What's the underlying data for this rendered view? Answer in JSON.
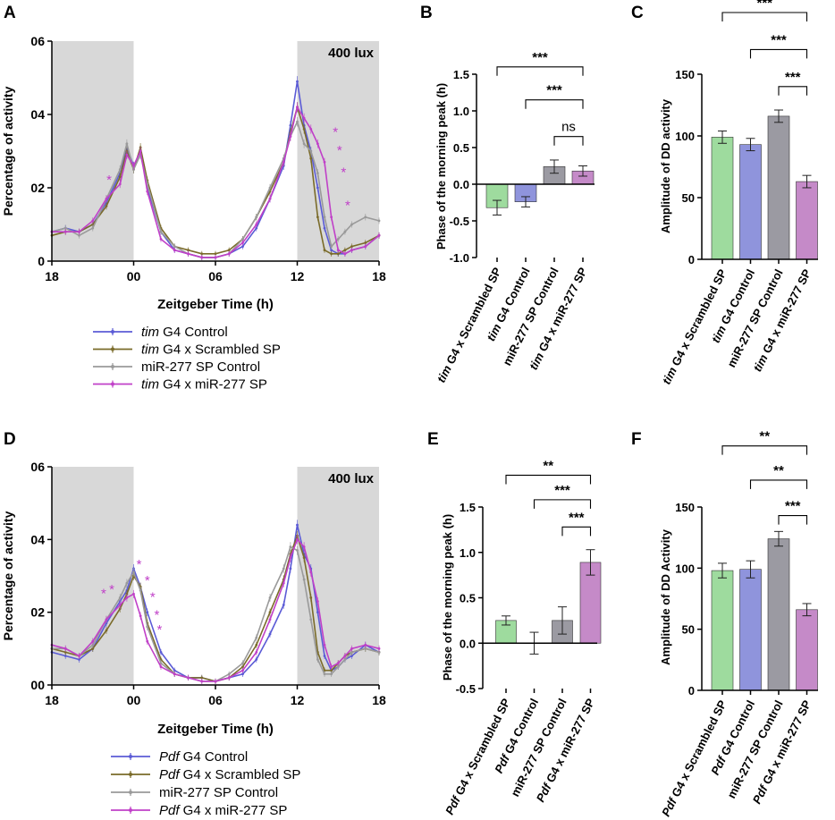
{
  "figure": {
    "legend_top": [
      {
        "italic": "tim",
        "rest": " G4 Control",
        "color": "#5b5bd6"
      },
      {
        "italic": "tim",
        "rest": " G4 x Scrambled SP",
        "color": "#7a6b2a"
      },
      {
        "italic": "",
        "rest": "miR-277 SP Control",
        "color": "#9a9a9a"
      },
      {
        "italic": "tim",
        "rest": " G4 x miR-277 SP",
        "color": "#c040c8"
      }
    ],
    "legend_bottom": [
      {
        "italic": "Pdf",
        "rest": " G4 Control",
        "color": "#5b5bd6"
      },
      {
        "italic": "Pdf",
        "rest": " G4 x Scrambled SP",
        "color": "#7a6b2a"
      },
      {
        "italic": "",
        "rest": "miR-277 SP Control",
        "color": "#9a9a9a"
      },
      {
        "italic": "Pdf",
        "rest": " G4 x miR-277 SP",
        "color": "#c040c8"
      }
    ]
  },
  "chart_data": [
    {
      "panel": "A",
      "type": "line",
      "title": "400 lux",
      "xlabel": "Zeitgeber Time (h)",
      "ylabel": "Percentage of activity",
      "x_ticks": [
        "18",
        "00",
        "06",
        "12",
        "18"
      ],
      "x_tick_positions": [
        18,
        24,
        30,
        36,
        42
      ],
      "ylim": [
        0,
        0.06
      ],
      "y_ticks": [
        "0",
        "02",
        "04",
        "06"
      ],
      "dark_shading": [
        [
          18,
          24
        ],
        [
          36,
          42
        ]
      ],
      "x": [
        18,
        19,
        20,
        21,
        22,
        23,
        23.5,
        24,
        24.5,
        25,
        26,
        27,
        28,
        29,
        30,
        31,
        32,
        33,
        34,
        35,
        35.5,
        36,
        36.5,
        37,
        37.5,
        38,
        38.5,
        39,
        39.5,
        40,
        41,
        42
      ],
      "series": [
        {
          "name": "tim G4 Control",
          "color": "#5b5bd6",
          "values": [
            0.008,
            0.009,
            0.008,
            0.01,
            0.016,
            0.024,
            0.031,
            0.026,
            0.03,
            0.02,
            0.008,
            0.003,
            0.002,
            0.001,
            0.001,
            0.002,
            0.004,
            0.009,
            0.017,
            0.026,
            0.037,
            0.049,
            0.037,
            0.03,
            0.02,
            0.009,
            0.003,
            0.002,
            0.002,
            0.003,
            0.004,
            0.007
          ]
        },
        {
          "name": "tim G4 x Scrambled SP",
          "color": "#7a6b2a",
          "values": [
            0.007,
            0.008,
            0.008,
            0.01,
            0.015,
            0.023,
            0.03,
            0.025,
            0.031,
            0.022,
            0.009,
            0.004,
            0.003,
            0.002,
            0.002,
            0.003,
            0.006,
            0.012,
            0.019,
            0.027,
            0.035,
            0.042,
            0.036,
            0.028,
            0.012,
            0.003,
            0.002,
            0.002,
            0.003,
            0.004,
            0.005,
            0.007
          ]
        },
        {
          "name": "miR-277 SP Control",
          "color": "#9a9a9a",
          "values": [
            0.008,
            0.009,
            0.007,
            0.009,
            0.017,
            0.025,
            0.032,
            0.025,
            0.029,
            0.021,
            0.008,
            0.004,
            0.002,
            0.001,
            0.001,
            0.002,
            0.006,
            0.012,
            0.02,
            0.028,
            0.034,
            0.038,
            0.032,
            0.03,
            0.024,
            0.012,
            0.004,
            0.006,
            0.008,
            0.01,
            0.012,
            0.011
          ]
        },
        {
          "name": "tim G4 x miR-277 SP",
          "color": "#c040c8",
          "values": [
            0.008,
            0.008,
            0.008,
            0.011,
            0.017,
            0.021,
            0.029,
            0.026,
            0.03,
            0.019,
            0.006,
            0.003,
            0.002,
            0.001,
            0.001,
            0.002,
            0.005,
            0.01,
            0.017,
            0.027,
            0.034,
            0.042,
            0.039,
            0.036,
            0.032,
            0.027,
            0.012,
            0.003,
            0.002,
            0.003,
            0.004,
            0.007
          ]
        }
      ],
      "annotations": [
        {
          "text": "*",
          "x": 22.2,
          "y": 0.0225
        },
        {
          "text": "*",
          "x": 38.8,
          "y": 0.0355
        },
        {
          "text": "*",
          "x": 39.1,
          "y": 0.0305
        },
        {
          "text": "*",
          "x": 39.4,
          "y": 0.0245
        },
        {
          "text": "*",
          "x": 39.7,
          "y": 0.0155
        }
      ]
    },
    {
      "panel": "B",
      "type": "bar",
      "ylabel": "Phase of the morning peak (h)",
      "categories": [
        {
          "i": "tim",
          "r": " G4 x Scrambled SP"
        },
        {
          "i": "tim",
          "r": " G4 Control"
        },
        {
          "i": "",
          "r": "miR-277 SP Control"
        },
        {
          "i": "tim",
          "r": " G4 x miR-277 SP"
        }
      ],
      "values": [
        -0.32,
        -0.24,
        0.24,
        0.18
      ],
      "errors": [
        0.1,
        0.07,
        0.09,
        0.07
      ],
      "colors": [
        "#9edb9e",
        "#8f94dc",
        "#9b9aa2",
        "#c58ac8"
      ],
      "ylim": [
        -1.0,
        1.5
      ],
      "y_ticks": [
        "-1.0",
        "-0.5",
        "0.0",
        "0.5",
        "1.0",
        "1.5"
      ],
      "significance": [
        {
          "from": 0,
          "to": 3,
          "label": "***",
          "y": 1.6
        },
        {
          "from": 1,
          "to": 3,
          "label": "***",
          "y": 1.15
        },
        {
          "from": 2,
          "to": 3,
          "label": "ns",
          "y": 0.65
        }
      ]
    },
    {
      "panel": "C",
      "type": "bar",
      "ylabel": "Amplitude of DD activity",
      "categories": [
        {
          "i": "tim",
          "r": " G4 x Scrambled SP"
        },
        {
          "i": "tim",
          "r": " G4 Control"
        },
        {
          "i": "",
          "r": "miR-277 SP Control"
        },
        {
          "i": "tim",
          "r": " G4 x miR-277 SP"
        }
      ],
      "values": [
        99,
        93,
        116,
        63
      ],
      "errors": [
        5,
        5,
        5,
        5
      ],
      "colors": [
        "#9edb9e",
        "#8f94dc",
        "#9b9aa2",
        "#c58ac8"
      ],
      "ylim": [
        0,
        150
      ],
      "y_ticks": [
        "0",
        "50",
        "100",
        "150"
      ],
      "significance": [
        {
          "from": 0,
          "to": 3,
          "label": "***",
          "y": 200
        },
        {
          "from": 1,
          "to": 3,
          "label": "***",
          "y": 170
        },
        {
          "from": 2,
          "to": 3,
          "label": "***",
          "y": 140
        }
      ]
    },
    {
      "panel": "D",
      "type": "line",
      "title": "400 lux",
      "xlabel": "Zeitgeber Time (h)",
      "ylabel": "Percentage of activity",
      "x_ticks": [
        "18",
        "00",
        "06",
        "12",
        "18"
      ],
      "x_tick_positions": [
        18,
        24,
        30,
        36,
        42
      ],
      "ylim": [
        0,
        0.06
      ],
      "y_ticks": [
        "00",
        "02",
        "04",
        "06"
      ],
      "dark_shading": [
        [
          18,
          24
        ],
        [
          36,
          42
        ]
      ],
      "x": [
        18,
        19,
        20,
        21,
        22,
        23,
        23.5,
        24,
        24.5,
        25,
        26,
        27,
        28,
        29,
        30,
        31,
        32,
        33,
        34,
        35,
        35.5,
        36,
        36.5,
        37,
        37.5,
        38,
        38.5,
        39,
        39.5,
        40,
        41,
        42
      ],
      "series": [
        {
          "name": "Pdf G4 Control",
          "color": "#5b5bd6",
          "values": [
            0.009,
            0.008,
            0.007,
            0.01,
            0.017,
            0.023,
            0.026,
            0.032,
            0.027,
            0.02,
            0.009,
            0.004,
            0.002,
            0.002,
            0.001,
            0.002,
            0.003,
            0.007,
            0.014,
            0.022,
            0.032,
            0.044,
            0.036,
            0.032,
            0.02,
            0.008,
            0.004,
            0.005,
            0.007,
            0.008,
            0.011,
            0.009
          ]
        },
        {
          "name": "Pdf G4 x Scrambled SP",
          "color": "#7a6b2a",
          "values": [
            0.01,
            0.009,
            0.008,
            0.01,
            0.015,
            0.021,
            0.025,
            0.03,
            0.027,
            0.017,
            0.007,
            0.003,
            0.002,
            0.002,
            0.001,
            0.002,
            0.005,
            0.011,
            0.02,
            0.029,
            0.036,
            0.041,
            0.035,
            0.024,
            0.009,
            0.004,
            0.004,
            0.006,
            0.008,
            0.009,
            0.01,
            0.009
          ]
        },
        {
          "name": "miR-277 SP Control",
          "color": "#9a9a9a",
          "values": [
            0.01,
            0.01,
            0.008,
            0.011,
            0.018,
            0.024,
            0.028,
            0.031,
            0.026,
            0.016,
            0.006,
            0.003,
            0.002,
            0.001,
            0.001,
            0.003,
            0.006,
            0.013,
            0.024,
            0.032,
            0.038,
            0.037,
            0.029,
            0.018,
            0.007,
            0.003,
            0.003,
            0.005,
            0.007,
            0.009,
            0.01,
            0.009
          ]
        },
        {
          "name": "Pdf G4 x miR-277 SP",
          "color": "#c040c8",
          "values": [
            0.011,
            0.01,
            0.008,
            0.012,
            0.018,
            0.022,
            0.024,
            0.025,
            0.019,
            0.012,
            0.005,
            0.003,
            0.002,
            0.001,
            0.001,
            0.002,
            0.004,
            0.009,
            0.018,
            0.028,
            0.035,
            0.04,
            0.038,
            0.031,
            0.023,
            0.011,
            0.005,
            0.006,
            0.008,
            0.01,
            0.011,
            0.01
          ]
        }
      ],
      "annotations": [
        {
          "text": "*",
          "x": 21.8,
          "y": 0.0255
        },
        {
          "text": "*",
          "x": 22.4,
          "y": 0.0265
        },
        {
          "text": "*",
          "x": 24.4,
          "y": 0.0335
        },
        {
          "text": "*",
          "x": 25.0,
          "y": 0.029
        },
        {
          "text": "*",
          "x": 25.4,
          "y": 0.0245
        },
        {
          "text": "*",
          "x": 25.7,
          "y": 0.0195
        },
        {
          "text": "*",
          "x": 25.9,
          "y": 0.0155
        }
      ]
    },
    {
      "panel": "E",
      "type": "bar",
      "ylabel": "Phase of the morning peak (h)",
      "categories": [
        {
          "i": "Pdf",
          "r": " G4 x Scrambled SP"
        },
        {
          "i": "Pdf",
          "r": " G4 Control"
        },
        {
          "i": "",
          "r": "miR-277 SP Control"
        },
        {
          "i": "Pdf",
          "r": " G4 x miR-277 SP"
        }
      ],
      "values": [
        0.25,
        0.0,
        0.25,
        0.89
      ],
      "errors": [
        0.05,
        0.12,
        0.15,
        0.14
      ],
      "colors": [
        "#9edb9e",
        "#8f94dc",
        "#9b9aa2",
        "#c58ac8"
      ],
      "ylim": [
        -0.5,
        1.5
      ],
      "y_ticks": [
        "-0.5",
        "0.0",
        "0.5",
        "1.0",
        "1.5"
      ],
      "significance": [
        {
          "from": 0,
          "to": 3,
          "label": "**",
          "y": 1.85
        },
        {
          "from": 1,
          "to": 3,
          "label": "***",
          "y": 1.58
        },
        {
          "from": 2,
          "to": 3,
          "label": "***",
          "y": 1.28
        }
      ]
    },
    {
      "panel": "F",
      "type": "bar",
      "ylabel": "Amplitude of DD Activity",
      "categories": [
        {
          "i": "Pdf",
          "r": " G4 x Scrambled SP"
        },
        {
          "i": "Pdf",
          "r": " G4 Control"
        },
        {
          "i": "",
          "r": "miR-277 SP Control"
        },
        {
          "i": "Pdf",
          "r": " G4 x miR-277 SP"
        }
      ],
      "values": [
        98,
        99,
        124,
        66
      ],
      "errors": [
        6,
        7,
        6,
        5
      ],
      "colors": [
        "#9edb9e",
        "#8f94dc",
        "#9b9aa2",
        "#c58ac8"
      ],
      "ylim": [
        0,
        150
      ],
      "y_ticks": [
        "0",
        "50",
        "100",
        "150"
      ],
      "significance": [
        {
          "from": 0,
          "to": 3,
          "label": "**",
          "y": 200
        },
        {
          "from": 1,
          "to": 3,
          "label": "**",
          "y": 172
        },
        {
          "from": 2,
          "to": 3,
          "label": "***",
          "y": 143
        }
      ]
    }
  ]
}
